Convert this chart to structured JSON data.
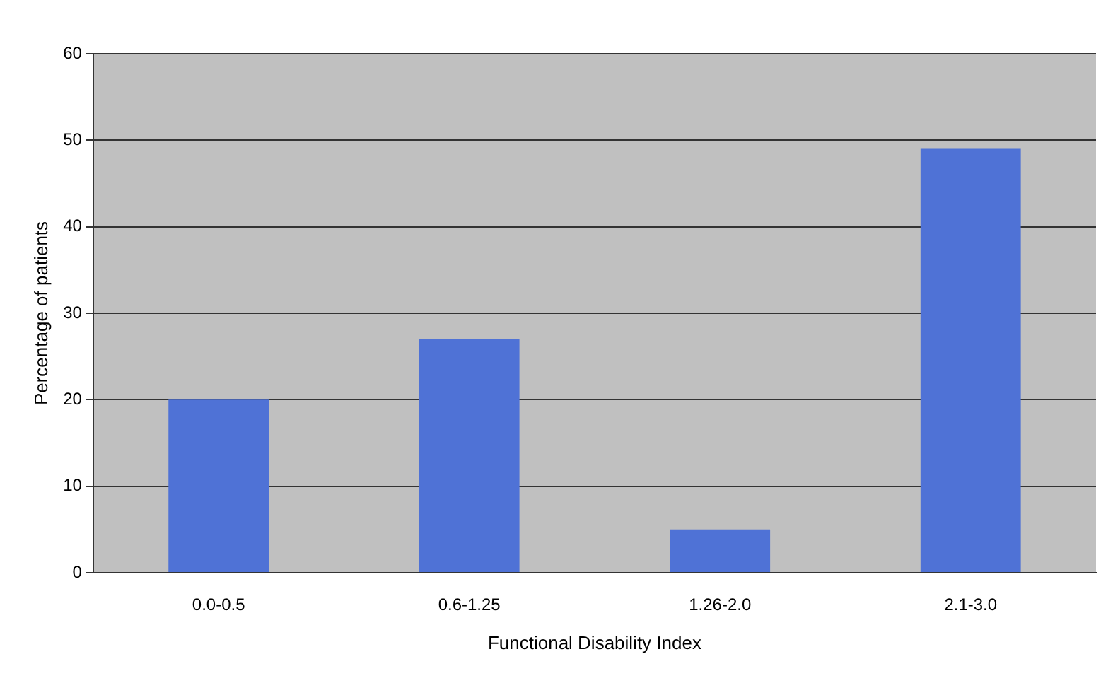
{
  "chart_data": {
    "type": "bar",
    "xlabel": "Functional Disability Index",
    "ylabel": "Percentage of patients",
    "categories": [
      "0.0-0.5",
      "0.6-1.25",
      "1.26-2.0",
      "2.1-3.0"
    ],
    "values": [
      20,
      27,
      5,
      49
    ],
    "color": "#4f72d6",
    "ylim": [
      0,
      60
    ],
    "yticks": [
      0,
      10,
      20,
      30,
      40,
      50,
      60
    ],
    "grid": "y",
    "legend": false
  }
}
